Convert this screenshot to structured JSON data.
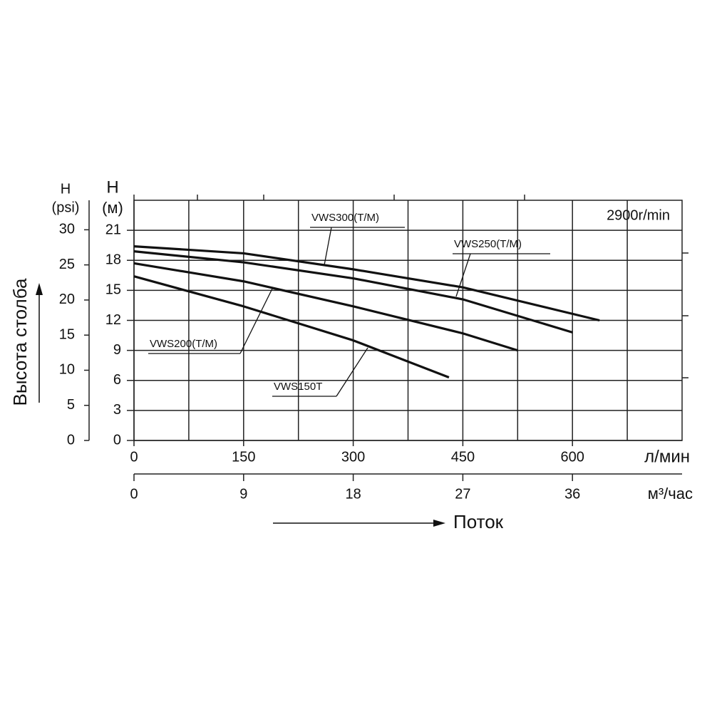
{
  "chart_data": {
    "type": "line",
    "y_axis_label": "Высота столба",
    "x_axis_label": "Поток",
    "y_unit_label": "H",
    "y_unit": "(м)",
    "y2_unit_label": "H",
    "y2_unit": "(psi)",
    "x_unit": "л/мин",
    "x2_unit": "м³/час",
    "annotation": "2900r/min",
    "xlim": [
      0,
      750
    ],
    "xticks": [
      0,
      150,
      300,
      450,
      600
    ],
    "xgrid": [
      75,
      225,
      375,
      525,
      675
    ],
    "x2lim": [
      0,
      45
    ],
    "x2ticks": [
      0,
      9,
      18,
      27,
      36
    ],
    "ylim": [
      0,
      24
    ],
    "yticks": [
      0,
      3,
      6,
      9,
      12,
      15,
      18,
      21
    ],
    "y2lim": [
      0,
      34.2
    ],
    "y2ticks": [
      0,
      5,
      10,
      15,
      20,
      25,
      30
    ],
    "grid": true,
    "series": [
      {
        "name": "VWS300(T/M)",
        "color": "#111111",
        "x": [
          0,
          150,
          300,
          450,
          637
        ],
        "values": [
          19.4,
          18.7,
          17.1,
          15.3,
          12.0
        ]
      },
      {
        "name": "VWS250(T/M)",
        "color": "#111111",
        "x": [
          0,
          150,
          300,
          450,
          600
        ],
        "values": [
          18.9,
          17.8,
          16.2,
          14.1,
          10.8
        ]
      },
      {
        "name": "VWS200(T/M)",
        "color": "#111111",
        "x": [
          0,
          150,
          300,
          450,
          525
        ],
        "values": [
          17.7,
          15.9,
          13.4,
          10.7,
          9.0
        ]
      },
      {
        "name": "VWS150T",
        "color": "#111111",
        "x": [
          0,
          150,
          300,
          431
        ],
        "values": [
          16.4,
          13.4,
          10.0,
          6.3
        ]
      }
    ]
  }
}
